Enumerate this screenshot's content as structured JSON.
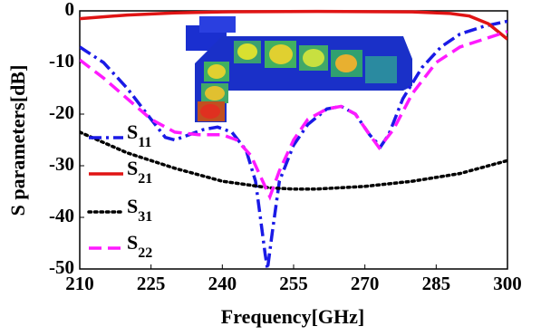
{
  "chart_data": {
    "type": "line",
    "xlabel": "Frequency[GHz]",
    "ylabel": "S parameters[dB]",
    "xlim": [
      210,
      300
    ],
    "xticks": [
      210,
      225,
      240,
      255,
      270,
      285,
      300
    ],
    "ylim": [
      -50,
      0
    ],
    "yticks": [
      0,
      -10,
      -20,
      -30,
      -40,
      -50
    ],
    "legend": "left",
    "series": [
      {
        "name": "S11",
        "color": "#1a1ae6",
        "linestyle": "dashdot",
        "x": [
          210,
          215,
          220,
          225,
          228,
          230,
          233,
          236,
          239,
          242,
          245,
          247,
          248,
          249,
          249.5,
          250.5,
          252,
          255,
          258,
          262,
          265,
          268,
          271,
          273.3,
          275,
          278,
          282,
          286,
          290,
          295,
          300
        ],
        "values": [
          -7,
          -10,
          -15,
          -21,
          -24.5,
          -25,
          -24,
          -23,
          -22.5,
          -23.5,
          -27,
          -33,
          -40,
          -47,
          -50,
          -43,
          -33,
          -26,
          -22,
          -19,
          -18.5,
          -20,
          -24,
          -26.3,
          -24,
          -17,
          -11,
          -7,
          -4.5,
          -3,
          -2
        ]
      },
      {
        "name": "S21",
        "color": "#e01414",
        "linestyle": "solid",
        "x": [
          210,
          220,
          230,
          240,
          260,
          280,
          288,
          292,
          296,
          300
        ],
        "values": [
          -1.5,
          -0.8,
          -0.4,
          -0.2,
          -0.1,
          -0.2,
          -0.5,
          -1,
          -2.5,
          -5.5
        ]
      },
      {
        "name": "S31",
        "color": "#000000",
        "linestyle": "dotted",
        "x": [
          210,
          220,
          230,
          240,
          250,
          255,
          260,
          270,
          280,
          290,
          300
        ],
        "values": [
          -23.5,
          -27.5,
          -30.5,
          -33,
          -34.3,
          -34.5,
          -34.5,
          -34,
          -33,
          -31.5,
          -29
        ]
      },
      {
        "name": "S22",
        "color": "#ff1aff",
        "linestyle": "dashed",
        "x": [
          210,
          215,
          220,
          225,
          230,
          235,
          240,
          243,
          246,
          248,
          250,
          252,
          255,
          258,
          262,
          265,
          268,
          271,
          273,
          276,
          280,
          285,
          290,
          295,
          300
        ],
        "values": [
          -9.5,
          -13,
          -17,
          -21,
          -23.5,
          -24,
          -24,
          -25,
          -28,
          -32,
          -36,
          -31,
          -25,
          -21,
          -19,
          -18.5,
          -20,
          -24,
          -26.5,
          -23,
          -16,
          -10,
          -7,
          -5.5,
          -4
        ]
      }
    ]
  }
}
